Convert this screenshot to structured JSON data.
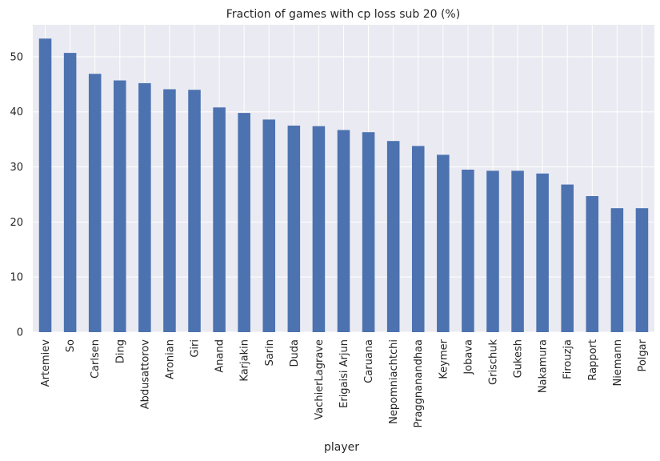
{
  "chart_data": {
    "type": "bar",
    "title": "Fraction of games with cp loss sub 20 (%)",
    "xlabel": "player",
    "ylabel": "",
    "ylim": [
      0,
      55.8
    ],
    "yticks": [
      0,
      10,
      20,
      30,
      40,
      50
    ],
    "grid": true,
    "legend": "none",
    "bar_color": "#4c72b0",
    "background_color": "#eaeaf2",
    "grid_color": "#ffffff",
    "categories": [
      "Artemiev",
      "So",
      "Carlsen",
      "Ding",
      "Abdusattorov",
      "Aronian",
      "Giri",
      "Anand",
      "Karjakin",
      "Sarin",
      "Duda",
      "VachierLagrave",
      "Erigaisi Arjun",
      "Caruana",
      "Nepomniachtchi",
      "Praggnanandhaa",
      "Keymer",
      "Jobava",
      "Grischuk",
      "Gukesh",
      "Nakamura",
      "Firouzja",
      "Rapport",
      "Niemann",
      "Polgar"
    ],
    "values": [
      53.3,
      50.7,
      46.9,
      45.7,
      45.2,
      44.1,
      44.0,
      40.8,
      39.8,
      38.6,
      37.5,
      37.4,
      36.7,
      36.3,
      34.7,
      33.8,
      32.2,
      29.5,
      29.3,
      29.3,
      28.8,
      26.8,
      24.7,
      22.5,
      22.5
    ]
  }
}
